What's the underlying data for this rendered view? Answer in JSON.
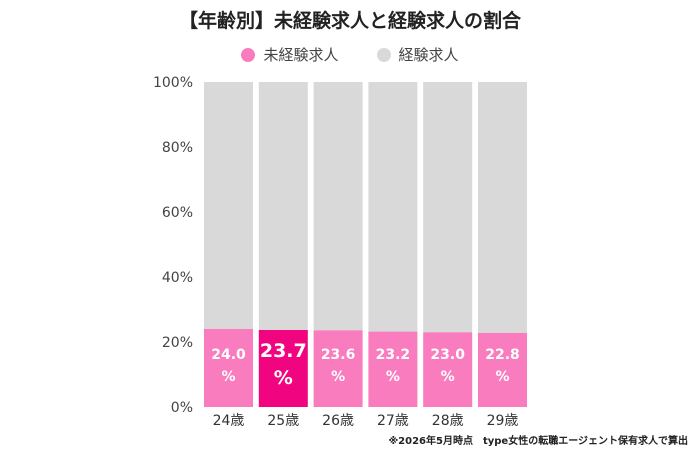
{
  "title": "【年齢別】未経験求人と経験求人の割合",
  "footnote": "※2026年5月時点　type女性の転職エージェント保有求人で算出",
  "legend": [
    {
      "label": "未経験求人",
      "color": "#f97cbf"
    },
    {
      "label": "経験求人",
      "color": "#d9d9d9"
    }
  ],
  "chart_data": {
    "type": "bar",
    "stacked": true,
    "categories": [
      "24歳",
      "25歳",
      "26歳",
      "27歳",
      "28歳",
      "29歳"
    ],
    "series": [
      {
        "name": "未経験求人",
        "values": [
          24.0,
          23.7,
          23.6,
          23.2,
          23.0,
          22.8
        ],
        "color": "#f97cbf"
      },
      {
        "name": "経験求人",
        "values": [
          76.0,
          76.3,
          76.4,
          76.8,
          77.0,
          77.2
        ],
        "color": "#d9d9d9"
      }
    ],
    "data_labels": [
      "24.0\n%",
      "23.7\n%",
      "23.6\n%",
      "23.2\n%",
      "23.0\n%",
      "22.8\n%"
    ],
    "highlight_index": 1,
    "highlight_color": "#f0047f",
    "yticks": [
      "0%",
      "20%",
      "40%",
      "60%",
      "80%",
      "100%"
    ],
    "ylim": [
      0,
      100
    ],
    "grid": false,
    "legend_position": "top"
  }
}
